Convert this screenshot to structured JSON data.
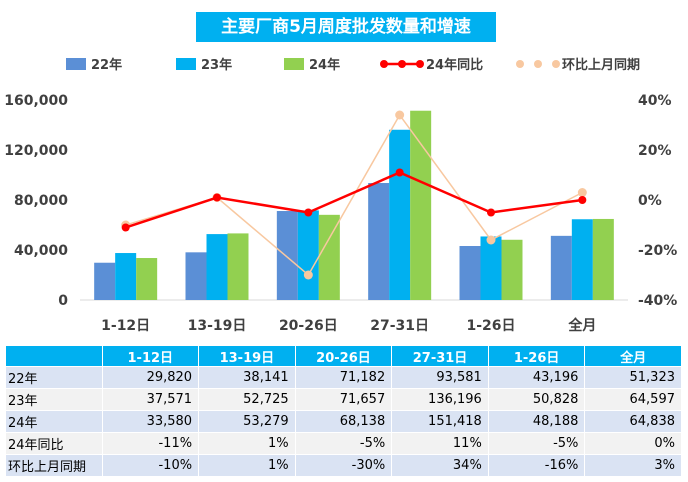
{
  "chart_data": {
    "type": "bar",
    "title": "主要厂商5月周度批发数量和增速",
    "categories": [
      "1-12日",
      "13-19日",
      "20-26日",
      "27-31日",
      "1-26日",
      "全月"
    ],
    "series": [
      {
        "name": "22年",
        "kind": "bar",
        "axis": "left",
        "color": "#5b8fd6",
        "values": [
          29820,
          38141,
          71182,
          93581,
          43196,
          51323
        ]
      },
      {
        "name": "23年",
        "kind": "bar",
        "axis": "left",
        "color": "#00b0f0",
        "values": [
          37571,
          52725,
          71657,
          136196,
          50828,
          64597
        ]
      },
      {
        "name": "24年",
        "kind": "bar",
        "axis": "left",
        "color": "#92d050",
        "values": [
          33580,
          53279,
          68138,
          151418,
          48188,
          64838
        ]
      },
      {
        "name": "24年同比",
        "kind": "line",
        "axis": "right",
        "color": "#ff0000",
        "values": [
          -11,
          1,
          -5,
          11,
          -5,
          0
        ]
      },
      {
        "name": "环比上月同期",
        "kind": "line",
        "axis": "right",
        "color": "#f8c8a0",
        "values": [
          -10,
          1,
          -30,
          34,
          -16,
          3
        ]
      }
    ],
    "y_left": {
      "range": [
        0,
        160000
      ],
      "ticks": [
        "0",
        "40,000",
        "80,000",
        "120,000",
        "160,000"
      ]
    },
    "y_right": {
      "range": [
        -40,
        40
      ],
      "ticks": [
        "-40%",
        "-20%",
        "0%",
        "20%",
        "40%"
      ]
    },
    "legend_position": "top",
    "grid": false
  },
  "table": {
    "headers": [
      "",
      "1-12日",
      "13-19日",
      "20-26日",
      "27-31日",
      "1-26日",
      "全月"
    ],
    "rows": [
      {
        "label": "22年",
        "cells": [
          "29,820",
          "38,141",
          "71,182",
          "93,581",
          "43,196",
          "51,323"
        ]
      },
      {
        "label": "23年",
        "cells": [
          "37,571",
          "52,725",
          "71,657",
          "136,196",
          "50,828",
          "64,597"
        ]
      },
      {
        "label": "24年",
        "cells": [
          "33,580",
          "53,279",
          "68,138",
          "151,418",
          "48,188",
          "64,838"
        ]
      },
      {
        "label": "24年同比",
        "cells": [
          "-11%",
          "1%",
          "-5%",
          "11%",
          "-5%",
          "0%"
        ]
      },
      {
        "label": "环比上月同期",
        "cells": [
          "-10%",
          "1%",
          "-30%",
          "34%",
          "-16%",
          "3%"
        ]
      }
    ]
  }
}
